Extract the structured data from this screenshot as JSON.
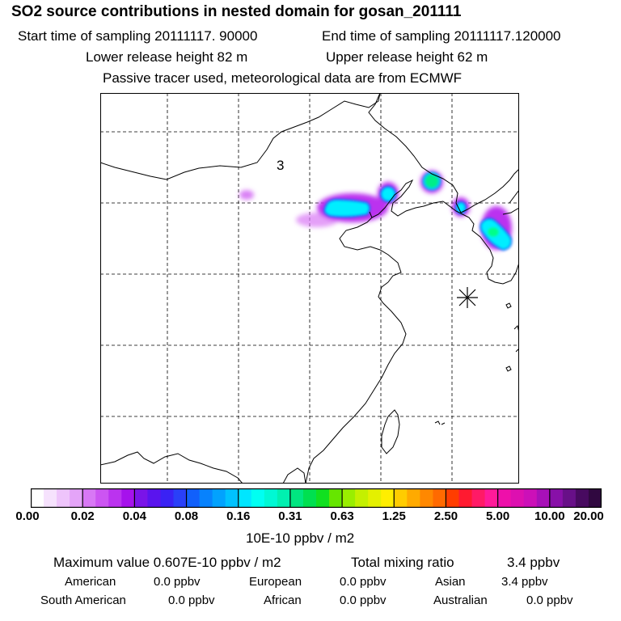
{
  "header": {
    "title": "SO2 source contributions in nested domain for gosan_201111",
    "start_time": "Start time of sampling 20111117. 90000",
    "end_time": "End time of sampling 20111117.120000",
    "lower_height": "Lower release height   82 m",
    "upper_height": "Upper release height   62 m",
    "tracer_note": "Passive tracer used, meteorological data are from ECMWF"
  },
  "map": {
    "label": "3",
    "marker": "station-star",
    "plume_colors": [
      "#cc33ff",
      "#00eeff",
      "#00ff88",
      "#66ffcc"
    ]
  },
  "colorbar": {
    "tick_labels": [
      "0.00",
      "0.02",
      "0.04",
      "0.08",
      "0.16",
      "0.31",
      "0.63",
      "1.25",
      "2.50",
      "5.00",
      "10.00",
      "20.00"
    ],
    "colors": [
      "#ffffff",
      "#f6e2fd",
      "#eec4fb",
      "#e4a4f8",
      "#d878f5",
      "#cc55f2",
      "#bb33ef",
      "#a612ec",
      "#7a14e8",
      "#5a14ee",
      "#3a22f4",
      "#2a40f8",
      "#1160fb",
      "#0782fd",
      "#02a2fe",
      "#00c2ff",
      "#00e6ff",
      "#00fff2",
      "#00f8d4",
      "#00f0b0",
      "#00e680",
      "#00e050",
      "#11e020",
      "#66e600",
      "#99ee00",
      "#c4f000",
      "#e4f000",
      "#ffee00",
      "#ffcc00",
      "#ffaa00",
      "#ff8800",
      "#ff6a00",
      "#ff3d00",
      "#ff1a30",
      "#ff1a66",
      "#ff1a99",
      "#ee10aa",
      "#dd10b0",
      "#cc10b8",
      "#a810b8",
      "#8810a8",
      "#681088",
      "#480a60",
      "#300840"
    ],
    "unit": "10E-10 ppbv / m2"
  },
  "summary": {
    "max_value": "Maximum value  0.607E-10 ppbv / m2",
    "total_label": "Total mixing ratio",
    "total_value": "3.4 ppbv",
    "regions": [
      {
        "name": "American",
        "value": "0.0 ppbv"
      },
      {
        "name": "European",
        "value": "0.0 ppbv"
      },
      {
        "name": "Asian",
        "value": "3.4 ppbv"
      },
      {
        "name": "South American",
        "value": "0.0 ppbv"
      },
      {
        "name": "African",
        "value": "0.0 ppbv"
      },
      {
        "name": "Australian",
        "value": "0.0 ppbv"
      }
    ]
  }
}
